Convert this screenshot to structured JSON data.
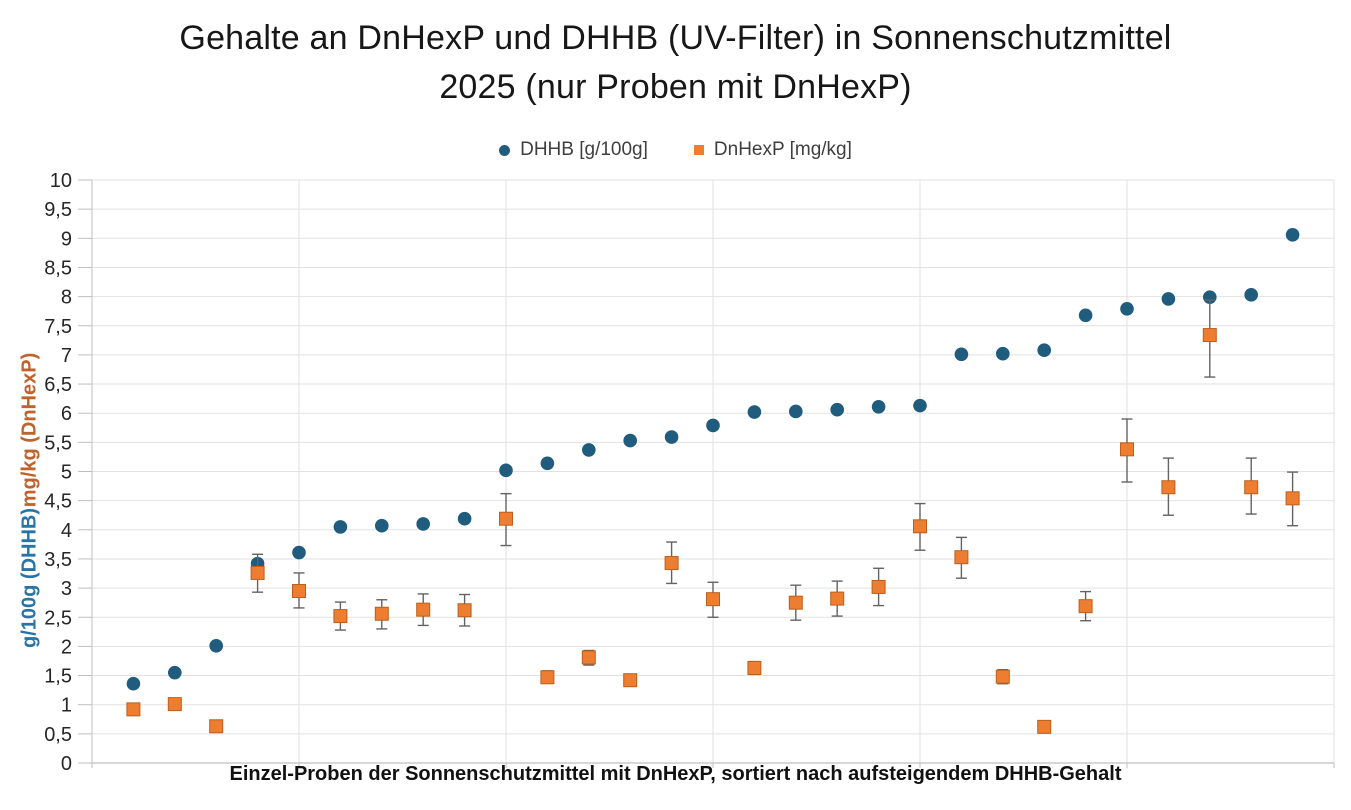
{
  "title": {
    "line1": "Gehalte an DnHexP und DHHB (UV-Filter) in Sonnenschutzmittel",
    "line2": "2025 (nur Proben mit DnHexP)"
  },
  "legend": [
    {
      "label": "DHHB [g/100g]",
      "marker": "circle",
      "color": "#1F5C7D"
    },
    {
      "label": "DnHexP [mg/kg]",
      "marker": "square",
      "color": "#ED7D31"
    }
  ],
  "axes": {
    "y_left_top_label": "mg/kg (DnHexP)",
    "y_left_top_color": "#C0622B",
    "y_left_bottom_label": "g/100g (DHHB)",
    "y_left_bottom_color": "#2874A6",
    "x_caption": "Einzel-Proben der Sonnenschutzmittel mit DnHexP, sortiert nach aufsteigendem DHHB-Gehalt"
  },
  "chart_data": {
    "type": "scatter",
    "title": "Gehalte an DnHexP und DHHB (UV-Filter) in Sonnenschutzmittel 2025 (nur Proben mit DnHexP)",
    "xlabel": "Einzel-Proben der Sonnenschutzmittel mit DnHexP, sortiert nach aufsteigendem DHHB-Gehalt",
    "ylabel_left_upper": "mg/kg (DnHexP)",
    "ylabel_left_lower": "g/100g (DHHB)",
    "x": [
      1,
      2,
      3,
      4,
      5,
      6,
      7,
      8,
      9,
      10,
      11,
      12,
      13,
      14,
      15,
      16,
      17,
      18,
      19,
      20,
      21,
      22,
      23,
      24,
      25,
      26,
      27,
      28,
      29
    ],
    "y_axis": {
      "min": 0,
      "max": 10,
      "step": 0.5,
      "decimal_separator": ","
    },
    "x_axis": {
      "min": 0,
      "max": 30,
      "gridline_every": 5,
      "tick_labels_shown": false
    },
    "grid": true,
    "legend_position": "top-center",
    "series": [
      {
        "name": "DHHB [g/100g]",
        "marker": "circle",
        "color": "#1F5C7D",
        "values": [
          1.36,
          1.55,
          2.01,
          3.42,
          3.61,
          4.05,
          4.07,
          4.1,
          4.19,
          5.02,
          5.14,
          5.37,
          5.53,
          5.59,
          5.79,
          6.02,
          6.03,
          6.06,
          6.11,
          6.13,
          7.01,
          7.02,
          7.08,
          7.68,
          7.79,
          7.96,
          7.99,
          8.03,
          9.06
        ]
      },
      {
        "name": "DnHexP [mg/kg]",
        "marker": "square",
        "color": "#ED7D31",
        "marker_edge_color": "#BD5F1B",
        "error_bar_color": "#636363",
        "values": [
          0.92,
          1.01,
          0.63,
          3.26,
          2.95,
          2.52,
          2.56,
          2.63,
          2.62,
          4.19,
          1.47,
          1.81,
          1.42,
          3.43,
          2.81,
          1.63,
          2.75,
          2.82,
          3.02,
          4.06,
          3.53,
          1.48,
          0.62,
          2.69,
          5.38,
          4.73,
          7.34,
          4.73,
          4.54
        ],
        "error_low": [
          0.85,
          0.93,
          null,
          2.93,
          2.66,
          2.28,
          2.3,
          2.36,
          2.35,
          3.73,
          1.37,
          1.68,
          1.32,
          3.08,
          2.5,
          1.52,
          2.45,
          2.52,
          2.7,
          3.65,
          3.17,
          1.36,
          null,
          2.44,
          4.82,
          4.25,
          6.62,
          4.27,
          4.07
        ],
        "error_high": [
          1.0,
          1.08,
          null,
          3.58,
          3.26,
          2.76,
          2.8,
          2.9,
          2.89,
          4.62,
          1.58,
          1.93,
          1.52,
          3.79,
          3.1,
          1.74,
          3.05,
          3.12,
          3.34,
          4.45,
          3.87,
          1.6,
          null,
          2.94,
          5.9,
          5.23,
          7.94,
          5.23,
          4.99
        ]
      }
    ],
    "style": {
      "gridline_color": "#E2E2E2",
      "axis_line_color": "#BFBFBF",
      "tick_label_color": "#262626"
    }
  }
}
